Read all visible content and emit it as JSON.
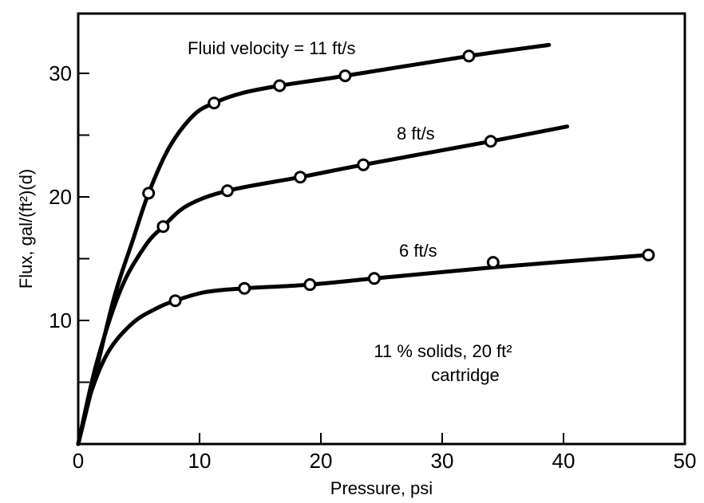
{
  "chart_data": {
    "type": "line",
    "xlabel": "Pressure, psi",
    "ylabel": "Flux, gal/(ft²)(d)",
    "xlim": [
      0,
      50
    ],
    "ylim": [
      0,
      35
    ],
    "x_ticks": [
      0,
      10,
      20,
      30,
      40,
      50
    ],
    "y_tick_labels": [
      10,
      20,
      30
    ],
    "y_minor_ticks": [
      5,
      15,
      25
    ],
    "grid": false,
    "series": [
      {
        "name": "Fluid velocity = 11 ft/s",
        "curve": [
          [
            0,
            0
          ],
          [
            1.5,
            6
          ],
          [
            3,
            12
          ],
          [
            4.5,
            16.5
          ],
          [
            5.8,
            20.3
          ],
          [
            7.5,
            24
          ],
          [
            9.5,
            26.6
          ],
          [
            11.2,
            27.6
          ],
          [
            13.5,
            28.4
          ],
          [
            16.6,
            29
          ],
          [
            22,
            29.8
          ],
          [
            32.2,
            31.4
          ],
          [
            38.8,
            32.3
          ]
        ],
        "points": [
          [
            5.8,
            20.3
          ],
          [
            11.2,
            27.6
          ],
          [
            16.6,
            29
          ],
          [
            22,
            29.8
          ],
          [
            32.2,
            31.4
          ]
        ]
      },
      {
        "name": "8 ft/s",
        "curve": [
          [
            0,
            0
          ],
          [
            1.5,
            6.5
          ],
          [
            3.5,
            12.5
          ],
          [
            5.5,
            16
          ],
          [
            7,
            17.6
          ],
          [
            9,
            19.3
          ],
          [
            12.3,
            20.5
          ],
          [
            18.3,
            21.6
          ],
          [
            23.5,
            22.6
          ],
          [
            34,
            24.5
          ],
          [
            40.3,
            25.7
          ]
        ],
        "points": [
          [
            7,
            17.6
          ],
          [
            12.3,
            20.5
          ],
          [
            18.3,
            21.6
          ],
          [
            23.5,
            22.6
          ],
          [
            34,
            24.5
          ]
        ]
      },
      {
        "name": "6 ft/s",
        "curve": [
          [
            0,
            0
          ],
          [
            1,
            4
          ],
          [
            2.5,
            7.5
          ],
          [
            4.5,
            9.8
          ],
          [
            6.5,
            11
          ],
          [
            8,
            11.6
          ],
          [
            10.5,
            12.3
          ],
          [
            13.7,
            12.6
          ],
          [
            19.1,
            12.9
          ],
          [
            24.4,
            13.4
          ],
          [
            34.2,
            14.3
          ],
          [
            47,
            15.3
          ]
        ],
        "points": [
          [
            8,
            11.6
          ],
          [
            13.7,
            12.6
          ],
          [
            19.1,
            12.9
          ],
          [
            24.4,
            13.4
          ],
          [
            34.2,
            14.7
          ],
          [
            47,
            15.3
          ]
        ]
      }
    ],
    "annotations": {
      "label_11": "Fluid velocity = 11 ft/s",
      "label_8": "8 ft/s",
      "label_6": "6 ft/s",
      "note_line1": "11 % solids, 20 ft²",
      "note_line2": "cartridge"
    }
  }
}
